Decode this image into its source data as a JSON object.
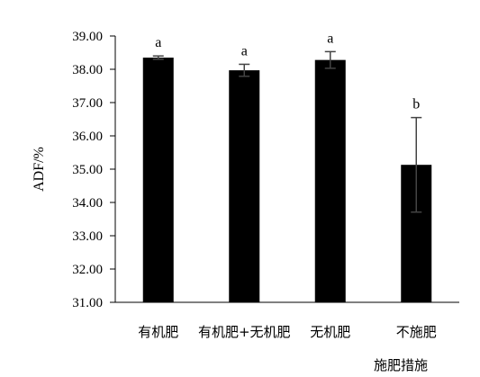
{
  "chart_data": {
    "type": "bar",
    "title": "",
    "xlabel": "施肥措施",
    "ylabel": "ADF/%",
    "ylim": [
      31,
      39
    ],
    "yticks": [
      "31.00",
      "32.00",
      "33.00",
      "34.00",
      "35.00",
      "36.00",
      "37.00",
      "38.00",
      "39.00"
    ],
    "grid": false,
    "legend": "none",
    "bar_color": "#000000",
    "categories": [
      "有机肥",
      "有机肥+无机肥",
      "无机肥",
      "不施肥"
    ],
    "values": [
      38.35,
      37.97,
      38.28,
      35.13
    ],
    "error": [
      0.05,
      0.18,
      0.25,
      1.42
    ],
    "significance": [
      "a",
      "a",
      "a",
      "b"
    ]
  }
}
